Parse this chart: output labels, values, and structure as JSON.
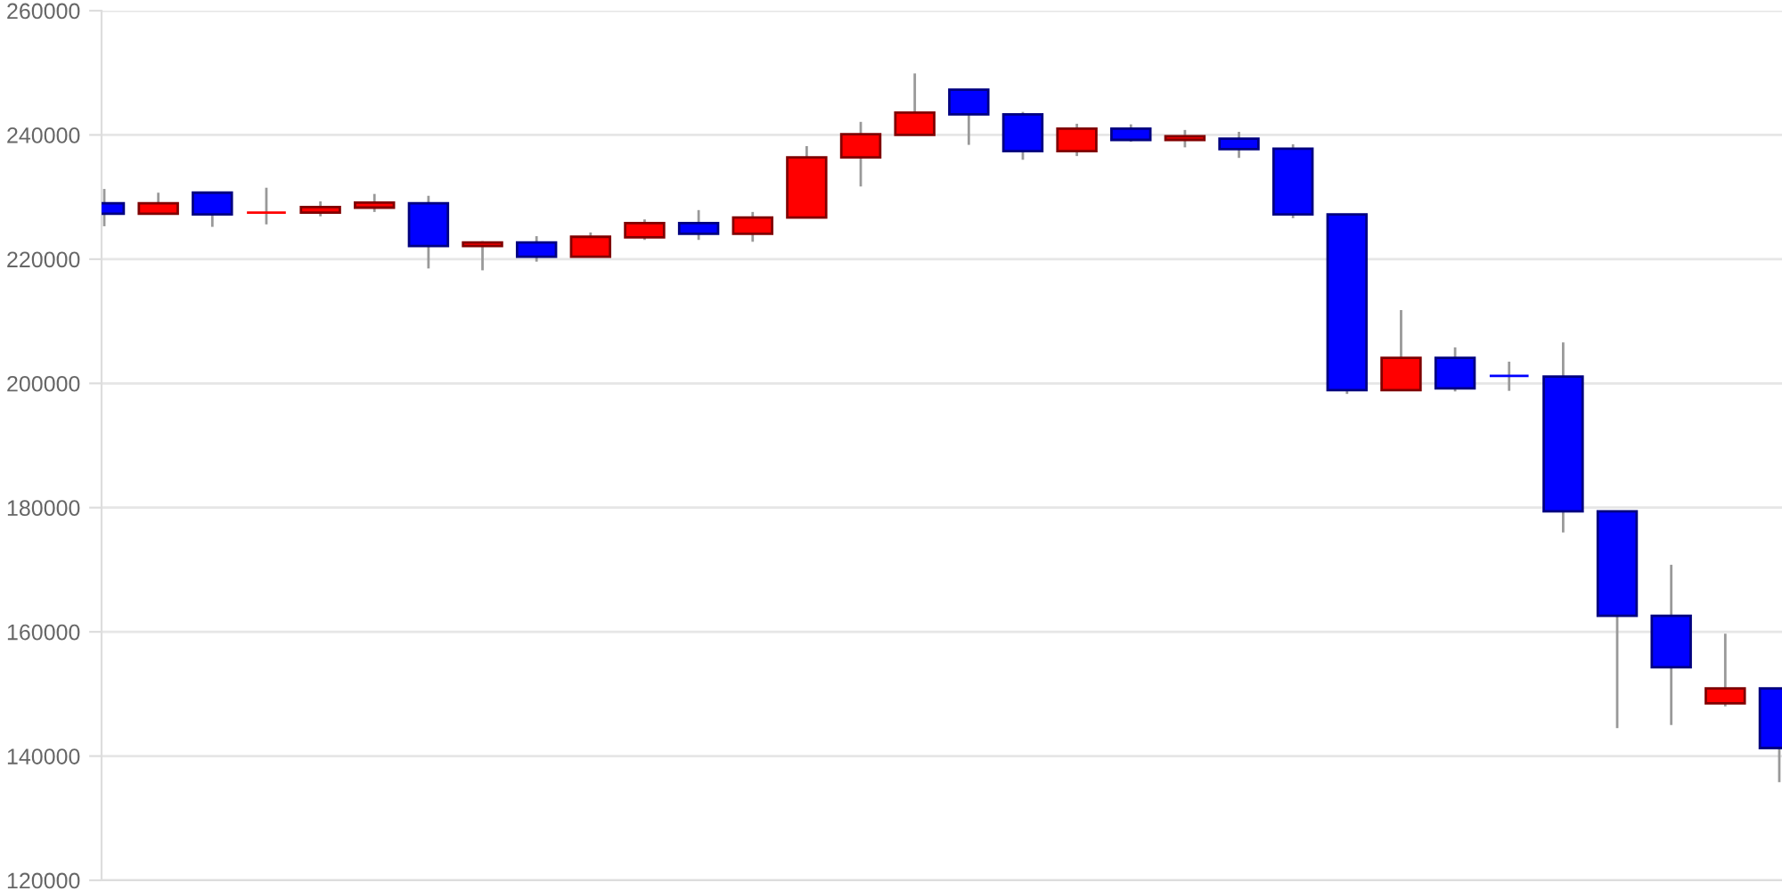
{
  "chart_data": {
    "type": "candlestick",
    "categories": [
      null,
      null,
      null,
      null,
      null,
      null,
      null,
      null,
      null,
      null,
      null,
      null,
      null,
      null,
      null,
      null,
      null,
      null,
      null,
      null,
      null,
      null,
      null,
      null,
      null,
      null,
      null,
      null,
      null,
      null,
      null,
      null
    ],
    "ohlc": [
      [
        229000,
        231300,
        225300,
        227300
      ],
      [
        227300,
        230700,
        227300,
        229000
      ],
      [
        230700,
        230700,
        225200,
        227200
      ],
      [
        227500,
        231500,
        225600,
        227500
      ],
      [
        227500,
        229300,
        226900,
        228400
      ],
      [
        228300,
        230500,
        227600,
        229100
      ],
      [
        229000,
        230200,
        218500,
        222100
      ],
      [
        222100,
        222900,
        218200,
        222700
      ],
      [
        222700,
        223700,
        219600,
        220400
      ],
      [
        220400,
        224300,
        220400,
        223600
      ],
      [
        223500,
        226400,
        223100,
        225800
      ],
      [
        225800,
        227900,
        223100,
        224100
      ],
      [
        224100,
        227600,
        222800,
        226700
      ],
      [
        226700,
        238200,
        226700,
        236400
      ],
      [
        236400,
        242100,
        231700,
        240100
      ],
      [
        240000,
        249900,
        240000,
        243600
      ],
      [
        247300,
        247300,
        238400,
        243300
      ],
      [
        243300,
        243700,
        236000,
        237400
      ],
      [
        237400,
        241800,
        236600,
        241000
      ],
      [
        241000,
        241700,
        238900,
        239200
      ],
      [
        239200,
        240800,
        238000,
        239800
      ],
      [
        239400,
        240500,
        236300,
        237700
      ],
      [
        237800,
        238500,
        226600,
        227200
      ],
      [
        227200,
        227200,
        198300,
        198900
      ],
      [
        198900,
        211800,
        198900,
        204100
      ],
      [
        204100,
        205800,
        198700,
        199200
      ],
      [
        201200,
        203500,
        198800,
        201200
      ],
      [
        201100,
        206600,
        176000,
        179400
      ],
      [
        179400,
        179400,
        144500,
        162600
      ],
      [
        162600,
        170800,
        145000,
        154300
      ],
      [
        148500,
        159700,
        148000,
        150900
      ],
      [
        150900,
        150900,
        135800,
        141300
      ]
    ],
    "colors": [
      "#0000ff",
      "#ff0000",
      "#0000ff",
      "#ff0000",
      "#ff0000",
      "#ff0000",
      "#0000ff",
      "#ff0000",
      "#0000ff",
      "#ff0000",
      "#ff0000",
      "#0000ff",
      "#ff0000",
      "#ff0000",
      "#ff0000",
      "#ff0000",
      "#0000ff",
      "#0000ff",
      "#ff0000",
      "#0000ff",
      "#ff0000",
      "#0000ff",
      "#0000ff",
      "#0000ff",
      "#ff0000",
      "#0000ff",
      "#0000ff",
      "#0000ff",
      "#0000ff",
      "#0000ff",
      "#ff0000",
      "#0000ff"
    ],
    "ylim": [
      120000,
      260000
    ],
    "yticks": [
      120000,
      140000,
      160000,
      180000,
      200000,
      220000,
      240000,
      260000
    ],
    "grid": "y"
  }
}
